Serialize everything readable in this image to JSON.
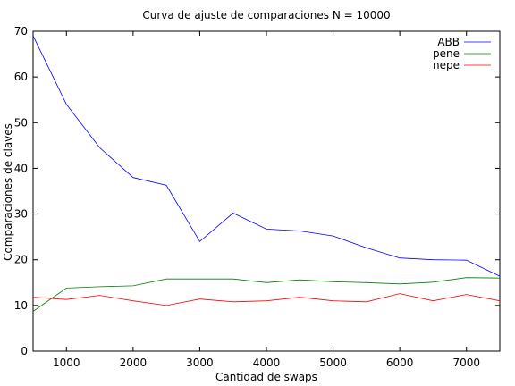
{
  "chart_data": {
    "type": "line",
    "title": "Curva de ajuste de comparaciones N = 10000",
    "xlabel": "Cantidad de swaps",
    "ylabel": "Comparaciones de claves",
    "xlim": [
      500,
      7500
    ],
    "ylim": [
      0,
      70
    ],
    "xticks": [
      1000,
      2000,
      3000,
      4000,
      5000,
      6000,
      7000
    ],
    "yticks": [
      0,
      10,
      20,
      30,
      40,
      50,
      60,
      70
    ],
    "grid": false,
    "legend_position": "top-right",
    "x": [
      500,
      1000,
      1500,
      2000,
      2500,
      3000,
      3500,
      4000,
      4500,
      5000,
      5500,
      6000,
      6500,
      7000,
      7500
    ],
    "series": [
      {
        "name": "ABB",
        "color": "#0000ff",
        "values": [
          69,
          54,
          44.5,
          38,
          36.3,
          24,
          30.2,
          26.7,
          26.3,
          25.2,
          22.6,
          20.4,
          20,
          19.9,
          16.4
        ]
      },
      {
        "name": "pene",
        "color": "#008000",
        "values": [
          8.7,
          13.8,
          14.1,
          14.3,
          15.8,
          15.8,
          15.8,
          15,
          15.6,
          15.2,
          15,
          14.7,
          15.1,
          16.1,
          16
        ]
      },
      {
        "name": "nepe",
        "color": "#ff0000",
        "values": [
          11.8,
          11.3,
          12.2,
          11,
          10,
          11.4,
          10.8,
          11,
          11.8,
          11,
          10.8,
          12.6,
          11,
          12.4,
          11
        ]
      }
    ]
  }
}
